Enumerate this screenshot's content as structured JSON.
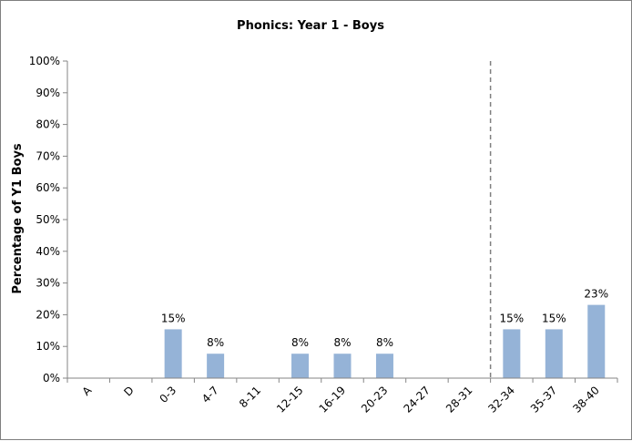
{
  "chart_data": {
    "type": "bar",
    "title": "Phonics: Year 1 - Boys",
    "xlabel": "",
    "ylabel": "Percentage of Y1 Boys",
    "categories": [
      "A",
      "D",
      "0-3",
      "4-7",
      "8-11",
      "12-15",
      "16-19",
      "20-23",
      "24-27",
      "28-31",
      "32-34",
      "35-37",
      "38-40"
    ],
    "values": [
      0,
      0,
      15.4,
      7.7,
      0,
      7.7,
      7.7,
      7.7,
      0,
      0,
      15.4,
      15.4,
      23.1
    ],
    "data_labels": [
      "",
      "",
      "15%",
      "8%",
      "",
      "8%",
      "8%",
      "8%",
      "",
      "",
      "15%",
      "15%",
      "23%"
    ],
    "ylim": [
      0,
      100
    ],
    "yticks": [
      "0%",
      "10%",
      "20%",
      "30%",
      "40%",
      "50%",
      "60%",
      "70%",
      "80%",
      "90%",
      "100%"
    ],
    "grid": false,
    "legend": "none",
    "reference_line_between": [
      "28-31",
      "32-34"
    ],
    "bar_color": "#95b3d7"
  }
}
